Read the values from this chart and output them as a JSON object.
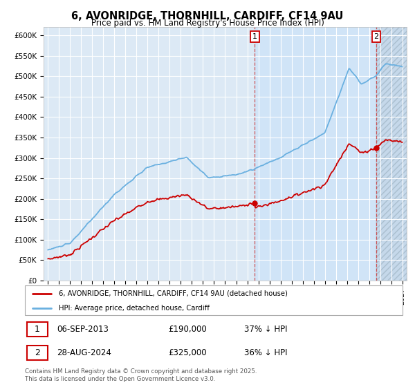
{
  "title": "6, AVONRIDGE, THORNHILL, CARDIFF, CF14 9AU",
  "subtitle": "Price paid vs. HM Land Registry's House Price Index (HPI)",
  "ylabel_ticks": [
    0,
    50000,
    100000,
    150000,
    200000,
    250000,
    300000,
    350000,
    400000,
    450000,
    500000,
    550000,
    600000
  ],
  "ylabel_labels": [
    "£0",
    "£50K",
    "£100K",
    "£150K",
    "£200K",
    "£250K",
    "£300K",
    "£350K",
    "£400K",
    "£450K",
    "£500K",
    "£550K",
    "£600K"
  ],
  "xlim_left": 1994.6,
  "xlim_right": 2027.4,
  "ylim": [
    0,
    620000
  ],
  "hpi_color": "#6ab0e0",
  "price_color": "#cc0000",
  "sale1_year": 2013.68,
  "sale1_price": 190000,
  "sale2_year": 2024.65,
  "sale2_price": 325000,
  "legend_line1": "6, AVONRIDGE, THORNHILL, CARDIFF, CF14 9AU (detached house)",
  "legend_line2": "HPI: Average price, detached house, Cardiff",
  "table_row1": [
    "1",
    "06-SEP-2013",
    "£190,000",
    "37% ↓ HPI"
  ],
  "table_row2": [
    "2",
    "28-AUG-2024",
    "£325,000",
    "36% ↓ HPI"
  ],
  "footnote": "Contains HM Land Registry data © Crown copyright and database right 2025.\nThis data is licensed under the Open Government Licence v3.0.",
  "bg_color": "#dce9f5",
  "grid_color": "#ffffff",
  "highlight_color": "#d0e4f7",
  "hatch_color": "#c5d8ea"
}
